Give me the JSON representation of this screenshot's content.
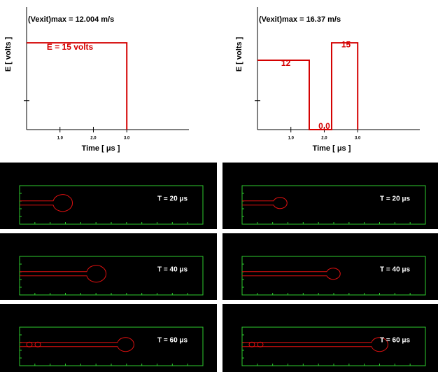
{
  "chart_data": [
    {
      "type": "line",
      "title": "(Vexit)max = 12.004 m/s",
      "xlabel": "Time [ μs ]",
      "ylabel": "E [ volts ]",
      "series": [
        {
          "color": "#d40000",
          "x": [
            0,
            3,
            3
          ],
          "values": [
            15,
            15,
            0
          ]
        }
      ],
      "annotations": [
        "E = 15 volts"
      ],
      "xlim": [
        0,
        4.86
      ],
      "ylim": [
        0,
        21.2
      ],
      "xticks": [
        {
          "value": 1,
          "label": "1.0"
        },
        {
          "value": 2,
          "label": "2.0"
        },
        {
          "value": 3,
          "label": "3.0"
        }
      ],
      "yticks": [
        5
      ],
      "ytick_labels": false
    },
    {
      "type": "line",
      "title": "(Vexit)max = 16.37 m/s",
      "xlabel": "Time [ μs ]",
      "ylabel": "E [ volts ]",
      "series": [
        {
          "color": "#d40000",
          "x": [
            0,
            1.55,
            1.55,
            2.22,
            2.22,
            3,
            3
          ],
          "values": [
            12,
            12,
            0,
            0,
            15,
            15,
            0
          ]
        }
      ],
      "annotations": [
        "12",
        "0.0",
        "15"
      ],
      "xlim": [
        0,
        4.86
      ],
      "ylim": [
        0,
        21.2
      ],
      "xticks": [
        {
          "value": 1,
          "label": "1.0"
        },
        {
          "value": 2,
          "label": "2.0"
        },
        {
          "value": 3,
          "label": "3.0"
        }
      ],
      "yticks": [
        5
      ],
      "ytick_labels": false
    }
  ],
  "simulations": [
    {
      "frames": [
        "T = 20 μs",
        "T = 40 μs",
        "T = 60 μs"
      ]
    },
    {
      "frames": [
        "T = 20 μs",
        "T = 40 μs",
        "T = 60 μs"
      ]
    }
  ]
}
